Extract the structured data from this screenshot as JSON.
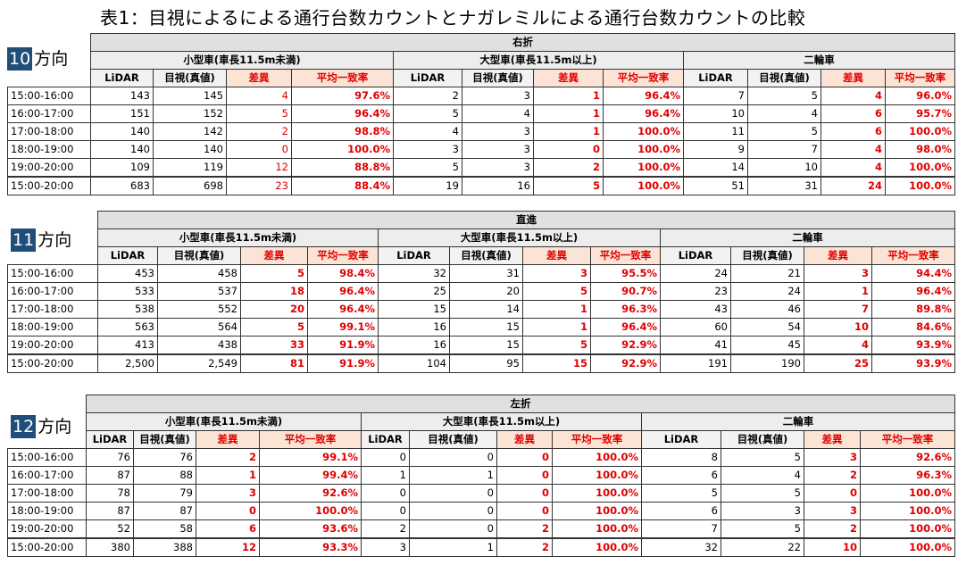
{
  "title": "表1：目視によるによる通行台数カウントとナガレミルによる通行台数カウントの比較",
  "headers": {
    "small": "小型車(車長11.5m未満)",
    "large": "大型車(車長11.5m以上)",
    "moto": "二輪車",
    "lidar": "LiDAR",
    "visual": "目視(真値)",
    "diff": "差異",
    "rate": "平均一致率"
  },
  "sections": [
    {
      "dir_num": "10",
      "dir_suffix": "方向",
      "movement": "右折",
      "rows": [
        {
          "time": "15:00-16:00",
          "s": [
            "143",
            "145",
            "4",
            "97.6%"
          ],
          "l": [
            "2",
            "3",
            "1",
            "96.4%"
          ],
          "m": [
            "7",
            "5",
            "4",
            "96.0%"
          ]
        },
        {
          "time": "16:00-17:00",
          "s": [
            "151",
            "152",
            "5",
            "96.4%"
          ],
          "l": [
            "5",
            "4",
            "1",
            "96.4%"
          ],
          "m": [
            "10",
            "4",
            "6",
            "95.7%"
          ]
        },
        {
          "time": "17:00-18:00",
          "s": [
            "140",
            "142",
            "2",
            "98.8%"
          ],
          "l": [
            "4",
            "3",
            "1",
            "100.0%"
          ],
          "m": [
            "11",
            "5",
            "6",
            "100.0%"
          ]
        },
        {
          "time": "18:00-19:00",
          "s": [
            "140",
            "140",
            "0",
            "100.0%"
          ],
          "l": [
            "3",
            "3",
            "0",
            "100.0%"
          ],
          "m": [
            "9",
            "7",
            "4",
            "98.0%"
          ]
        },
        {
          "time": "19:00-20:00",
          "s": [
            "109",
            "119",
            "12",
            "88.8%"
          ],
          "l": [
            "5",
            "3",
            "2",
            "100.0%"
          ],
          "m": [
            "14",
            "10",
            "4",
            "100.0%"
          ]
        }
      ],
      "total": {
        "time": "15:00-20:00",
        "s": [
          "683",
          "698",
          "23",
          "88.4%"
        ],
        "l": [
          "19",
          "16",
          "5",
          "100.0%"
        ],
        "m": [
          "51",
          "31",
          "24",
          "100.0%"
        ]
      }
    },
    {
      "dir_num": "11",
      "dir_suffix": "方向",
      "movement": "直進",
      "rows": [
        {
          "time": "15:00-16:00",
          "s": [
            "453",
            "458",
            "5",
            "98.4%"
          ],
          "l": [
            "32",
            "31",
            "3",
            "95.5%"
          ],
          "m": [
            "24",
            "21",
            "3",
            "94.4%"
          ]
        },
        {
          "time": "16:00-17:00",
          "s": [
            "533",
            "537",
            "18",
            "96.4%"
          ],
          "l": [
            "25",
            "20",
            "5",
            "90.7%"
          ],
          "m": [
            "23",
            "24",
            "1",
            "96.4%"
          ]
        },
        {
          "time": "17:00-18:00",
          "s": [
            "538",
            "552",
            "20",
            "96.4%"
          ],
          "l": [
            "15",
            "14",
            "1",
            "96.3%"
          ],
          "m": [
            "43",
            "46",
            "7",
            "89.8%"
          ]
        },
        {
          "time": "18:00-19:00",
          "s": [
            "563",
            "564",
            "5",
            "99.1%"
          ],
          "l": [
            "16",
            "15",
            "1",
            "96.4%"
          ],
          "m": [
            "60",
            "54",
            "10",
            "84.6%"
          ]
        },
        {
          "time": "19:00-20:00",
          "s": [
            "413",
            "438",
            "33",
            "91.9%"
          ],
          "l": [
            "16",
            "15",
            "5",
            "92.9%"
          ],
          "m": [
            "41",
            "45",
            "4",
            "93.9%"
          ]
        }
      ],
      "total": {
        "time": "15:00-20:00",
        "s": [
          "2,500",
          "2,549",
          "81",
          "91.9%"
        ],
        "l": [
          "104",
          "95",
          "15",
          "92.9%"
        ],
        "m": [
          "191",
          "190",
          "25",
          "93.9%"
        ]
      }
    },
    {
      "dir_num": "12",
      "dir_suffix": "方向",
      "movement": "左折",
      "rows": [
        {
          "time": "15:00-16:00",
          "s": [
            "76",
            "76",
            "2",
            "99.1%"
          ],
          "l": [
            "0",
            "0",
            "0",
            "100.0%"
          ],
          "m": [
            "8",
            "5",
            "3",
            "92.6%"
          ]
        },
        {
          "time": "16:00-17:00",
          "s": [
            "87",
            "88",
            "1",
            "99.4%"
          ],
          "l": [
            "1",
            "1",
            "0",
            "100.0%"
          ],
          "m": [
            "6",
            "4",
            "2",
            "96.3%"
          ]
        },
        {
          "time": "17:00-18:00",
          "s": [
            "78",
            "79",
            "3",
            "92.6%"
          ],
          "l": [
            "0",
            "0",
            "0",
            "100.0%"
          ],
          "m": [
            "5",
            "5",
            "0",
            "100.0%"
          ]
        },
        {
          "time": "18:00-19:00",
          "s": [
            "87",
            "87",
            "0",
            "100.0%"
          ],
          "l": [
            "0",
            "0",
            "0",
            "100.0%"
          ],
          "m": [
            "6",
            "3",
            "3",
            "100.0%"
          ]
        },
        {
          "time": "19:00-20:00",
          "s": [
            "52",
            "58",
            "6",
            "93.6%"
          ],
          "l": [
            "2",
            "0",
            "2",
            "100.0%"
          ],
          "m": [
            "7",
            "5",
            "2",
            "100.0%"
          ]
        }
      ],
      "total": {
        "time": "15:00-20:00",
        "s": [
          "380",
          "388",
          "12",
          "93.3%"
        ],
        "l": [
          "3",
          "1",
          "2",
          "100.0%"
        ],
        "m": [
          "32",
          "22",
          "10",
          "100.0%"
        ]
      }
    }
  ]
}
